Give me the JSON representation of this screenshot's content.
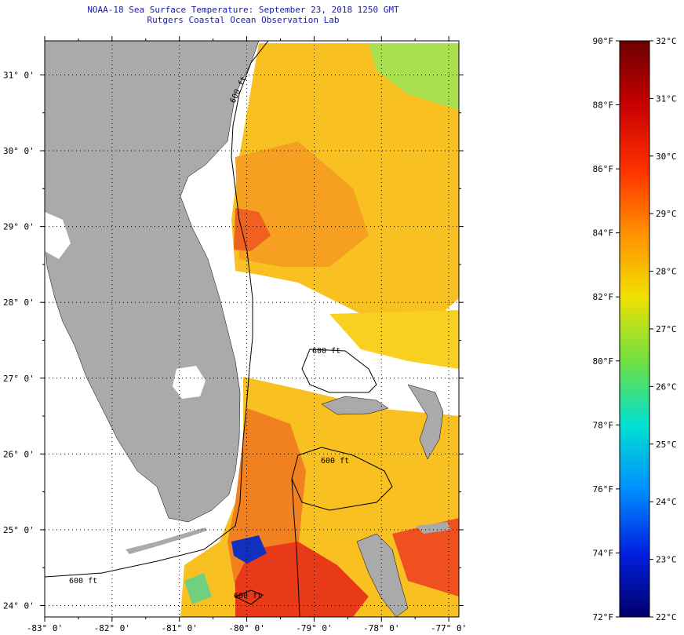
{
  "header": {
    "title": "NOAA-18 Sea Surface Temperature:  September 23, 2018 1250 GMT",
    "subtitle": "Rutgers Coastal Ocean Observation Lab"
  },
  "map": {
    "lon_range": [
      -83,
      -76.85
    ],
    "lat_range": [
      23.85,
      31.45
    ],
    "lat_ticks": [
      {
        "lat": 31,
        "label": "31° 0'"
      },
      {
        "lat": 30,
        "label": "30° 0'"
      },
      {
        "lat": 29,
        "label": "29° 0'"
      },
      {
        "lat": 28,
        "label": "28° 0'"
      },
      {
        "lat": 27,
        "label": "27° 0'"
      },
      {
        "lat": 26,
        "label": "26° 0'"
      },
      {
        "lat": 25,
        "label": "25° 0'"
      },
      {
        "lat": 24,
        "label": "24° 0'"
      }
    ],
    "lon_ticks": [
      {
        "lon": -83,
        "label": "-83° 0'"
      },
      {
        "lon": -82,
        "label": "-82° 0'"
      },
      {
        "lon": -81,
        "label": "-81° 0'"
      },
      {
        "lon": -80,
        "label": "-80° 0'"
      },
      {
        "lon": -79,
        "label": "-79° 0'"
      },
      {
        "lon": -78,
        "label": "-78° 0'"
      },
      {
        "lon": -77,
        "label": "-77° 0'"
      }
    ],
    "contour_labels": [
      {
        "text": "600 ft"
      },
      {
        "text": "600 ft"
      },
      {
        "text": "600 ft"
      },
      {
        "text": "600 ft"
      },
      {
        "text": "600 ft"
      }
    ],
    "colors": {
      "land": "#aaaaaa",
      "nodata": "#ffffff",
      "gridline": "#000000"
    }
  },
  "colorbar": {
    "f_range": [
      72,
      90
    ],
    "c_range": [
      22,
      32
    ],
    "f_labels": [
      {
        "value": 90,
        "label": "90°F"
      },
      {
        "value": 88,
        "label": "88°F"
      },
      {
        "value": 86,
        "label": "86°F"
      },
      {
        "value": 84,
        "label": "84°F"
      },
      {
        "value": 82,
        "label": "82°F"
      },
      {
        "value": 80,
        "label": "80°F"
      },
      {
        "value": 78,
        "label": "78°F"
      },
      {
        "value": 76,
        "label": "76°F"
      },
      {
        "value": 74,
        "label": "74°F"
      },
      {
        "value": 72,
        "label": "72°F"
      }
    ],
    "c_labels": [
      {
        "value": 32,
        "label": "32°C"
      },
      {
        "value": 31,
        "label": "31°C"
      },
      {
        "value": 30,
        "label": "30°C"
      },
      {
        "value": 29,
        "label": "29°C"
      },
      {
        "value": 28,
        "label": "28°C"
      },
      {
        "value": 27,
        "label": "27°C"
      },
      {
        "value": 26,
        "label": "26°C"
      },
      {
        "value": 25,
        "label": "25°C"
      },
      {
        "value": 24,
        "label": "24°C"
      },
      {
        "value": 23,
        "label": "23°C"
      },
      {
        "value": 22,
        "label": "22°C"
      }
    ],
    "gradient_stops": [
      "#6b0000",
      "#c80000",
      "#ff3000",
      "#ff9000",
      "#f0e000",
      "#70e040",
      "#00e0d0",
      "#0090ff",
      "#0020e0",
      "#00006b"
    ]
  }
}
